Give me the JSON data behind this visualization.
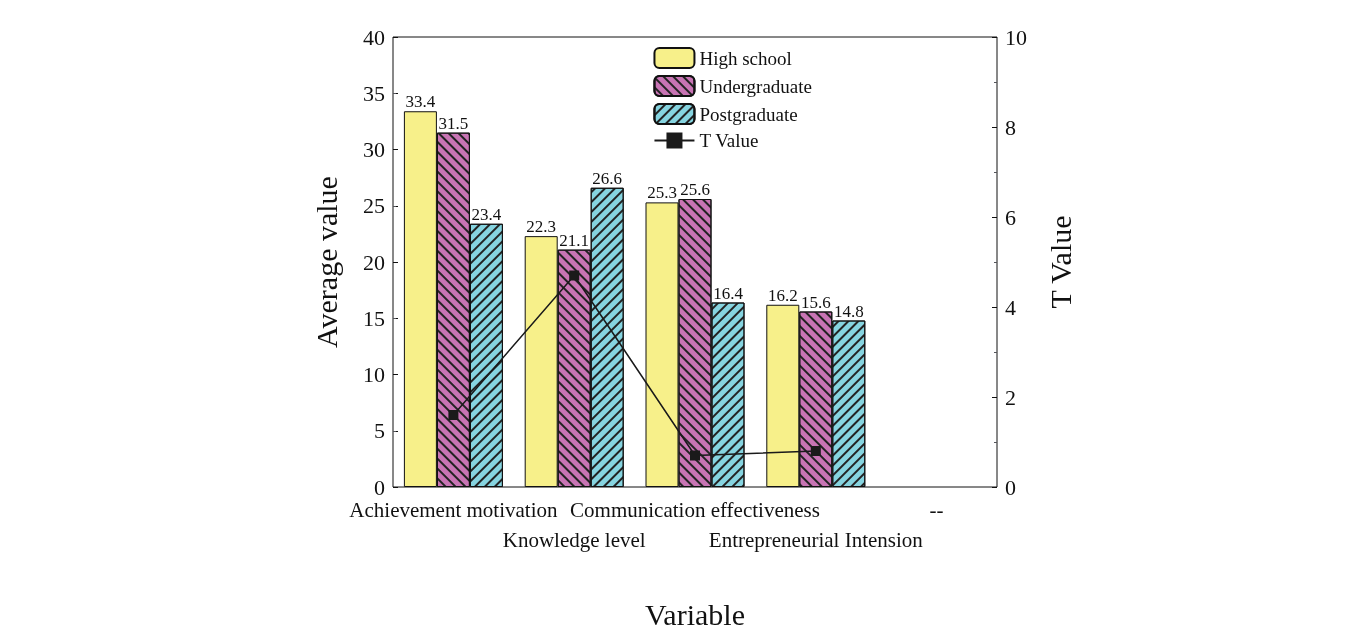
{
  "chart_data": {
    "type": "bar",
    "xlabel": "Variable",
    "ylabel": "Average value",
    "y2label": "T Value",
    "categories": [
      "Achievement motivation",
      "Knowledge level",
      "Communication effectiveness",
      "Entrepreneurial Intension",
      "--"
    ],
    "series": [
      {
        "name": "High school",
        "color": "#f7f08a",
        "values": [
          33.4,
          22.3,
          25.3,
          16.2,
          null
        ],
        "value_labels": [
          "33.4",
          "22.3",
          "25.3",
          "16.2",
          null
        ]
      },
      {
        "name": "Undergraduate",
        "color": "#c874b4",
        "values": [
          31.5,
          21.1,
          25.6,
          15.6,
          null
        ],
        "value_labels": [
          "31.5",
          "21.1",
          "25.6",
          "15.6",
          null
        ]
      },
      {
        "name": "Postgraduate",
        "color": "#86d4e0",
        "values": [
          23.4,
          26.6,
          16.4,
          14.8,
          null
        ],
        "value_labels": [
          "23.4",
          "26.6",
          "16.4",
          "14.8",
          null
        ]
      },
      {
        "name": "T Value",
        "type": "line",
        "axis": "y2",
        "color": "#1a1a1a",
        "marker": "square",
        "values": [
          1.6,
          4.7,
          0.7,
          0.8,
          null
        ]
      }
    ],
    "ylim": [
      0,
      40
    ],
    "yticks": [
      0,
      5,
      10,
      15,
      20,
      25,
      30,
      35,
      40
    ],
    "y2lim": [
      0,
      10
    ],
    "y2ticks": [
      0,
      2,
      4,
      6,
      8,
      10
    ],
    "legend": "top right"
  }
}
